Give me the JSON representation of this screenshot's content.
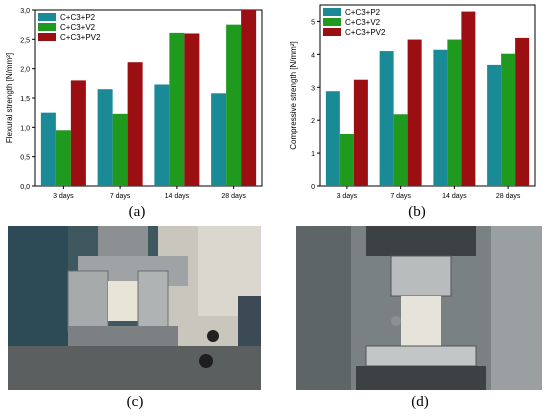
{
  "chart_data": [
    {
      "type": "bar",
      "panel": "(a)",
      "categories": [
        "3 days",
        "7 days",
        "14 days",
        "28 days"
      ],
      "series": [
        {
          "name": "C+C3+P2",
          "color": "#1b8a97",
          "values": [
            1.25,
            1.65,
            1.73,
            1.58
          ]
        },
        {
          "name": "C+C3+V2",
          "color": "#1f9a1f",
          "values": [
            0.95,
            1.23,
            2.61,
            2.75
          ]
        },
        {
          "name": "C+C3+PV2",
          "color": "#9b0f12",
          "values": [
            1.8,
            2.11,
            2.6,
            3.0
          ]
        }
      ],
      "ylabel": "Flexural strength [N/mm²]",
      "ylim": [
        0,
        3.0
      ],
      "yticks": [
        "0,0",
        "0,5",
        "1,0",
        "1,5",
        "2,0",
        "2,5",
        "3,0"
      ],
      "legend": "top-left"
    },
    {
      "type": "bar",
      "panel": "(b)",
      "categories": [
        "3 days",
        "7 days",
        "14 days",
        "28 days"
      ],
      "series": [
        {
          "name": "C+C3+P2",
          "color": "#1b8a97",
          "values": [
            2.88,
            4.1,
            4.14,
            3.68
          ]
        },
        {
          "name": "C+C3+V2",
          "color": "#1f9a1f",
          "values": [
            1.58,
            2.18,
            4.45,
            4.02
          ]
        },
        {
          "name": "C+C3+PV2",
          "color": "#9b0f12",
          "values": [
            3.23,
            4.45,
            5.3,
            4.5
          ]
        }
      ],
      "ylabel": "Compressive strength [N/mm²]",
      "ylim": [
        0,
        5.5
      ],
      "yticks": [
        "0",
        "1",
        "2",
        "3",
        "4",
        "5"
      ],
      "legend": "top-left"
    }
  ],
  "captions": {
    "a": "(a)",
    "b": "(b)",
    "c": "(c)",
    "d": "(d)"
  }
}
